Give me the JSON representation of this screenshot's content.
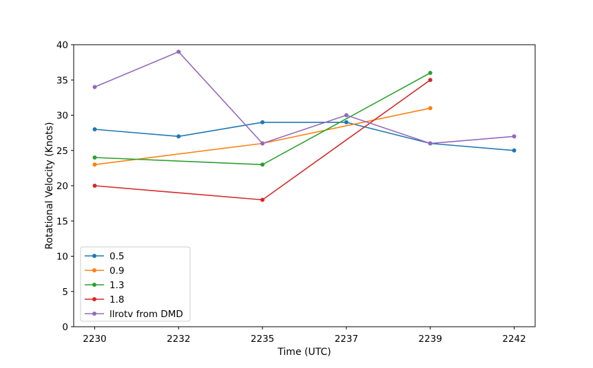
{
  "figure": {
    "background": "#ffffff",
    "axis_color": "#000000",
    "legend_border_color": "#cccccc"
  },
  "chart_data": {
    "type": "line",
    "title": "",
    "xlabel": "Time (UTC)",
    "ylabel": "Rotational Velocity (Knots)",
    "categories": [
      "2230",
      "2232",
      "2235",
      "2237",
      "2239",
      "2242"
    ],
    "ylim": [
      0,
      40
    ],
    "yticks": [
      0,
      5,
      10,
      15,
      20,
      25,
      30,
      35,
      40
    ],
    "grid": false,
    "legend_position": "lower-left",
    "marker": "dot",
    "series": [
      {
        "name": "0.5",
        "color": "#1f77b4",
        "x": [
          "2230",
          "2232",
          "2235",
          "2237",
          "2239",
          "2242"
        ],
        "values": [
          28,
          27,
          29,
          29,
          26,
          25
        ]
      },
      {
        "name": "0.9",
        "color": "#ff7f0e",
        "x": [
          "2230",
          "2235",
          "2239"
        ],
        "values": [
          23,
          26,
          31
        ]
      },
      {
        "name": "1.3",
        "color": "#2ca02c",
        "x": [
          "2230",
          "2235",
          "2239"
        ],
        "values": [
          24,
          23,
          36
        ]
      },
      {
        "name": "1.8",
        "color": "#d62728",
        "x": [
          "2230",
          "2235",
          "2239"
        ],
        "values": [
          20,
          18,
          35
        ]
      },
      {
        "name": "llrotv from DMD",
        "color": "#9467bd",
        "x": [
          "2230",
          "2232",
          "2235",
          "2237",
          "2239",
          "2242"
        ],
        "values": [
          34,
          39,
          26,
          30,
          26,
          27
        ]
      }
    ]
  }
}
